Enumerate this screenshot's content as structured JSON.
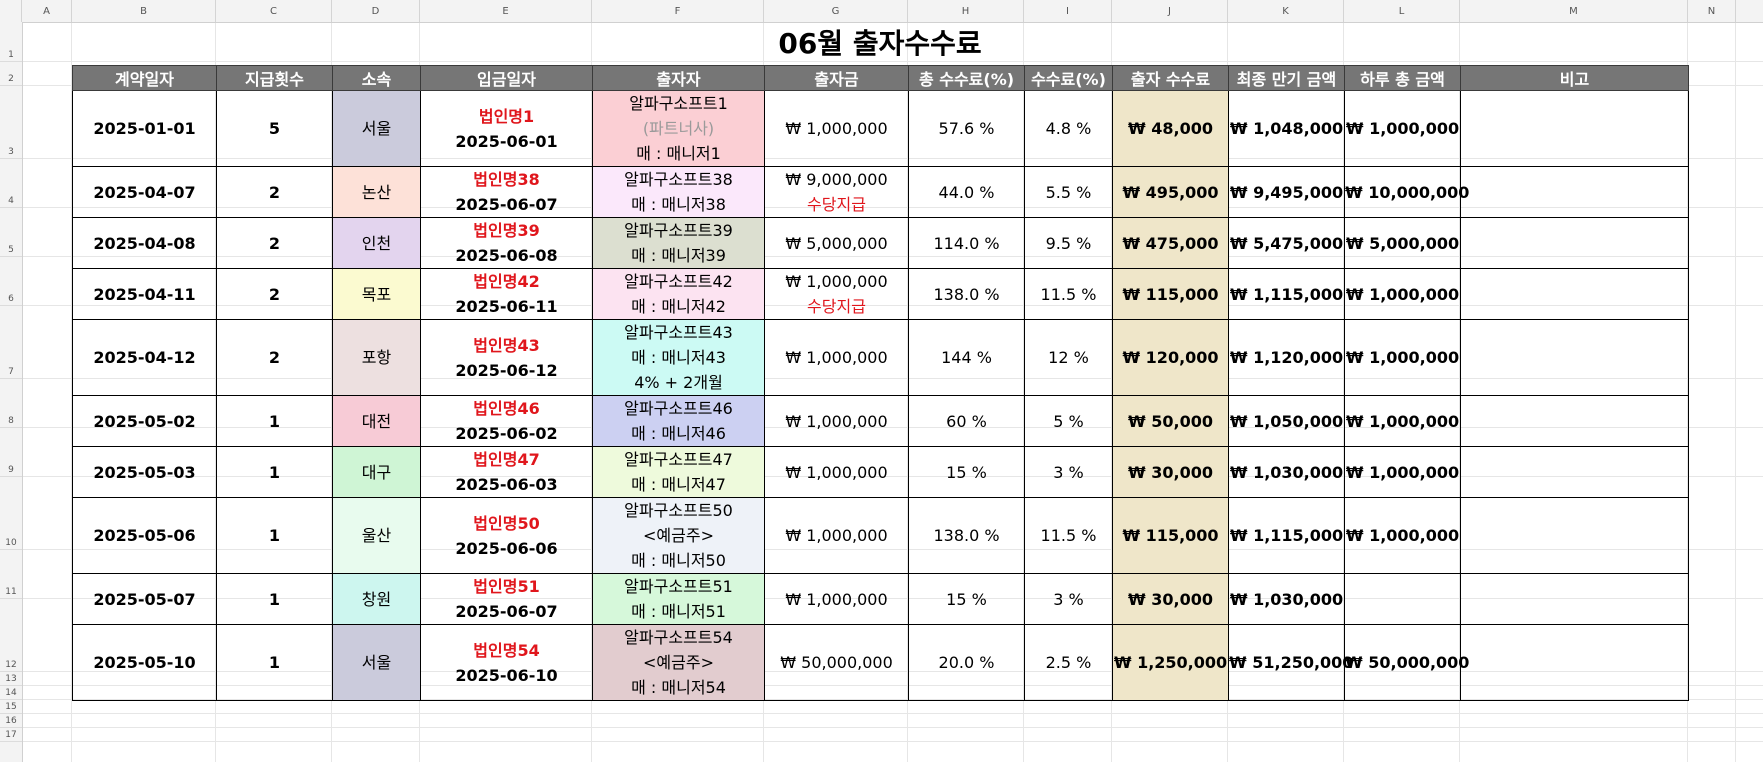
{
  "sheet": {
    "column_letters": [
      "A",
      "B",
      "C",
      "D",
      "E",
      "F",
      "G",
      "H",
      "I",
      "J",
      "K",
      "L",
      "M",
      "N"
    ],
    "row_numbers": [
      "1",
      "2",
      "3",
      "4",
      "5",
      "6",
      "7",
      "8",
      "9",
      "10",
      "11",
      "12",
      "13",
      "14",
      "15",
      "16",
      "17"
    ]
  },
  "title": "06월 출자수수료",
  "headers": [
    "계약일자",
    "지급횟수",
    "소속",
    "입금일자",
    "출자자",
    "출자금",
    "총 수수료(%)",
    "수수료(%)",
    "출자 수수료",
    "최종 만기 금액",
    "하루 총 금액",
    "비고"
  ],
  "rows": [
    {
      "contract_date": "2025-01-01",
      "payments": "5",
      "branch": "서울",
      "branch_color": "#cbcbdc",
      "corp": "법인명1",
      "deposit_date": "2025-06-01",
      "investor": [
        "알파구소프트1",
        "(파트너사)",
        "매 : 매니저1"
      ],
      "investor_gray_line": 1,
      "investor_color": "#fbcfd4",
      "amount": [
        "₩ 1,000,000"
      ],
      "total_fee": "57.6 %",
      "fee": "4.8 %",
      "fee_amount": "₩ 48,000",
      "maturity": "₩ 1,048,000",
      "daily_total": "₩ 1,000,000",
      "note": ""
    },
    {
      "contract_date": "2025-04-07",
      "payments": "2",
      "branch": "논산",
      "branch_color": "#fde1d8",
      "corp": "법인명38",
      "deposit_date": "2025-06-07",
      "investor": [
        "알파구소프트38",
        "매 : 매니저38"
      ],
      "investor_gray_line": -1,
      "investor_color": "#fbe8fb",
      "amount": [
        "₩ 9,000,000",
        "수당지급"
      ],
      "total_fee": "44.0 %",
      "fee": "5.5 %",
      "fee_amount": "₩ 495,000",
      "maturity": "₩ 9,495,000",
      "daily_total": "₩ 10,000,000",
      "note": ""
    },
    {
      "contract_date": "2025-04-08",
      "payments": "2",
      "branch": "인천",
      "branch_color": "#e3d4ee",
      "corp": "법인명39",
      "deposit_date": "2025-06-08",
      "investor": [
        "알파구소프트39",
        "매 : 매니저39"
      ],
      "investor_gray_line": -1,
      "investor_color": "#dcdfd0",
      "amount": [
        "₩ 5,000,000"
      ],
      "total_fee": "114.0 %",
      "fee": "9.5 %",
      "fee_amount": "₩ 475,000",
      "maturity": "₩ 5,475,000",
      "daily_total": "₩ 5,000,000",
      "note": ""
    },
    {
      "contract_date": "2025-04-11",
      "payments": "2",
      "branch": "목포",
      "branch_color": "#fbfad0",
      "corp": "법인명42",
      "deposit_date": "2025-06-11",
      "investor": [
        "알파구소프트42",
        "매 : 매니저42"
      ],
      "investor_gray_line": -1,
      "investor_color": "#fce3f1",
      "amount": [
        "₩ 1,000,000",
        "수당지급"
      ],
      "total_fee": "138.0 %",
      "fee": "11.5 %",
      "fee_amount": "₩ 115,000",
      "maturity": "₩ 1,115,000",
      "daily_total": "₩ 1,000,000",
      "note": ""
    },
    {
      "contract_date": "2025-04-12",
      "payments": "2",
      "branch": "포항",
      "branch_color": "#ede0e0",
      "corp": "법인명43",
      "deposit_date": "2025-06-12",
      "investor": [
        "알파구소프트43",
        "매 : 매니저43",
        "4% + 2개월"
      ],
      "investor_gray_line": -1,
      "investor_color": "#ccfaf4",
      "amount": [
        "₩ 1,000,000"
      ],
      "total_fee": "144 %",
      "fee": "12 %",
      "fee_amount": "₩ 120,000",
      "maturity": "₩ 1,120,000",
      "daily_total": "₩ 1,000,000",
      "note": ""
    },
    {
      "contract_date": "2025-05-02",
      "payments": "1",
      "branch": "대전",
      "branch_color": "#f7cbd6",
      "corp": "법인명46",
      "deposit_date": "2025-06-02",
      "investor": [
        "알파구소프트46",
        "매 : 매니저46"
      ],
      "investor_gray_line": -1,
      "investor_color": "#ccd0f2",
      "amount": [
        "₩ 1,000,000"
      ],
      "total_fee": "60 %",
      "fee": "5 %",
      "fee_amount": "₩ 50,000",
      "maturity": "₩ 1,050,000",
      "daily_total": "₩ 1,000,000",
      "note": ""
    },
    {
      "contract_date": "2025-05-03",
      "payments": "1",
      "branch": "대구",
      "branch_color": "#cff5d5",
      "corp": "법인명47",
      "deposit_date": "2025-06-03",
      "investor": [
        "알파구소프트47",
        "매 : 매니저47"
      ],
      "investor_gray_line": -1,
      "investor_color": "#eefadc",
      "amount": [
        "₩ 1,000,000"
      ],
      "total_fee": "15 %",
      "fee": "3 %",
      "fee_amount": "₩ 30,000",
      "maturity": "₩ 1,030,000",
      "daily_total": "₩ 1,000,000",
      "note": ""
    },
    {
      "contract_date": "2025-05-06",
      "payments": "1",
      "branch": "울산",
      "branch_color": "#e8fbee",
      "corp": "법인명50",
      "deposit_date": "2025-06-06",
      "investor": [
        "알파구소프트50",
        "<예금주>",
        "매 : 매니저50"
      ],
      "investor_gray_line": -1,
      "investor_color": "#eef2f8",
      "amount": [
        "₩ 1,000,000"
      ],
      "total_fee": "138.0 %",
      "fee": "11.5 %",
      "fee_amount": "₩ 115,000",
      "maturity": "₩ 1,115,000",
      "daily_total": "₩ 1,000,000",
      "note": ""
    },
    {
      "contract_date": "2025-05-07",
      "payments": "1",
      "branch": "창원",
      "branch_color": "#cdf6ef",
      "corp": "법인명51",
      "deposit_date": "2025-06-07",
      "investor": [
        "알파구소프트51",
        "매 : 매니저51"
      ],
      "investor_gray_line": -1,
      "investor_color": "#d6f8da",
      "amount": [
        "₩ 1,000,000"
      ],
      "total_fee": "15 %",
      "fee": "3 %",
      "fee_amount": "₩ 30,000",
      "maturity": "₩ 1,030,000",
      "daily_total": "",
      "note": ""
    },
    {
      "contract_date": "2025-05-10",
      "payments": "1",
      "branch": "서울",
      "branch_color": "#cbcbdc",
      "corp": "법인명54",
      "deposit_date": "2025-06-10",
      "investor": [
        "알파구소프트54",
        "<예금주>",
        "매 : 매니저54"
      ],
      "investor_gray_line": -1,
      "investor_color": "#e2cccf",
      "amount": [
        "₩ 50,000,000"
      ],
      "total_fee": "20.0 %",
      "fee": "2.5 %",
      "fee_amount": "₩ 1,250,000",
      "maturity": "₩ 51,250,000",
      "daily_total": "₩ 50,000,000",
      "note": ""
    }
  ]
}
